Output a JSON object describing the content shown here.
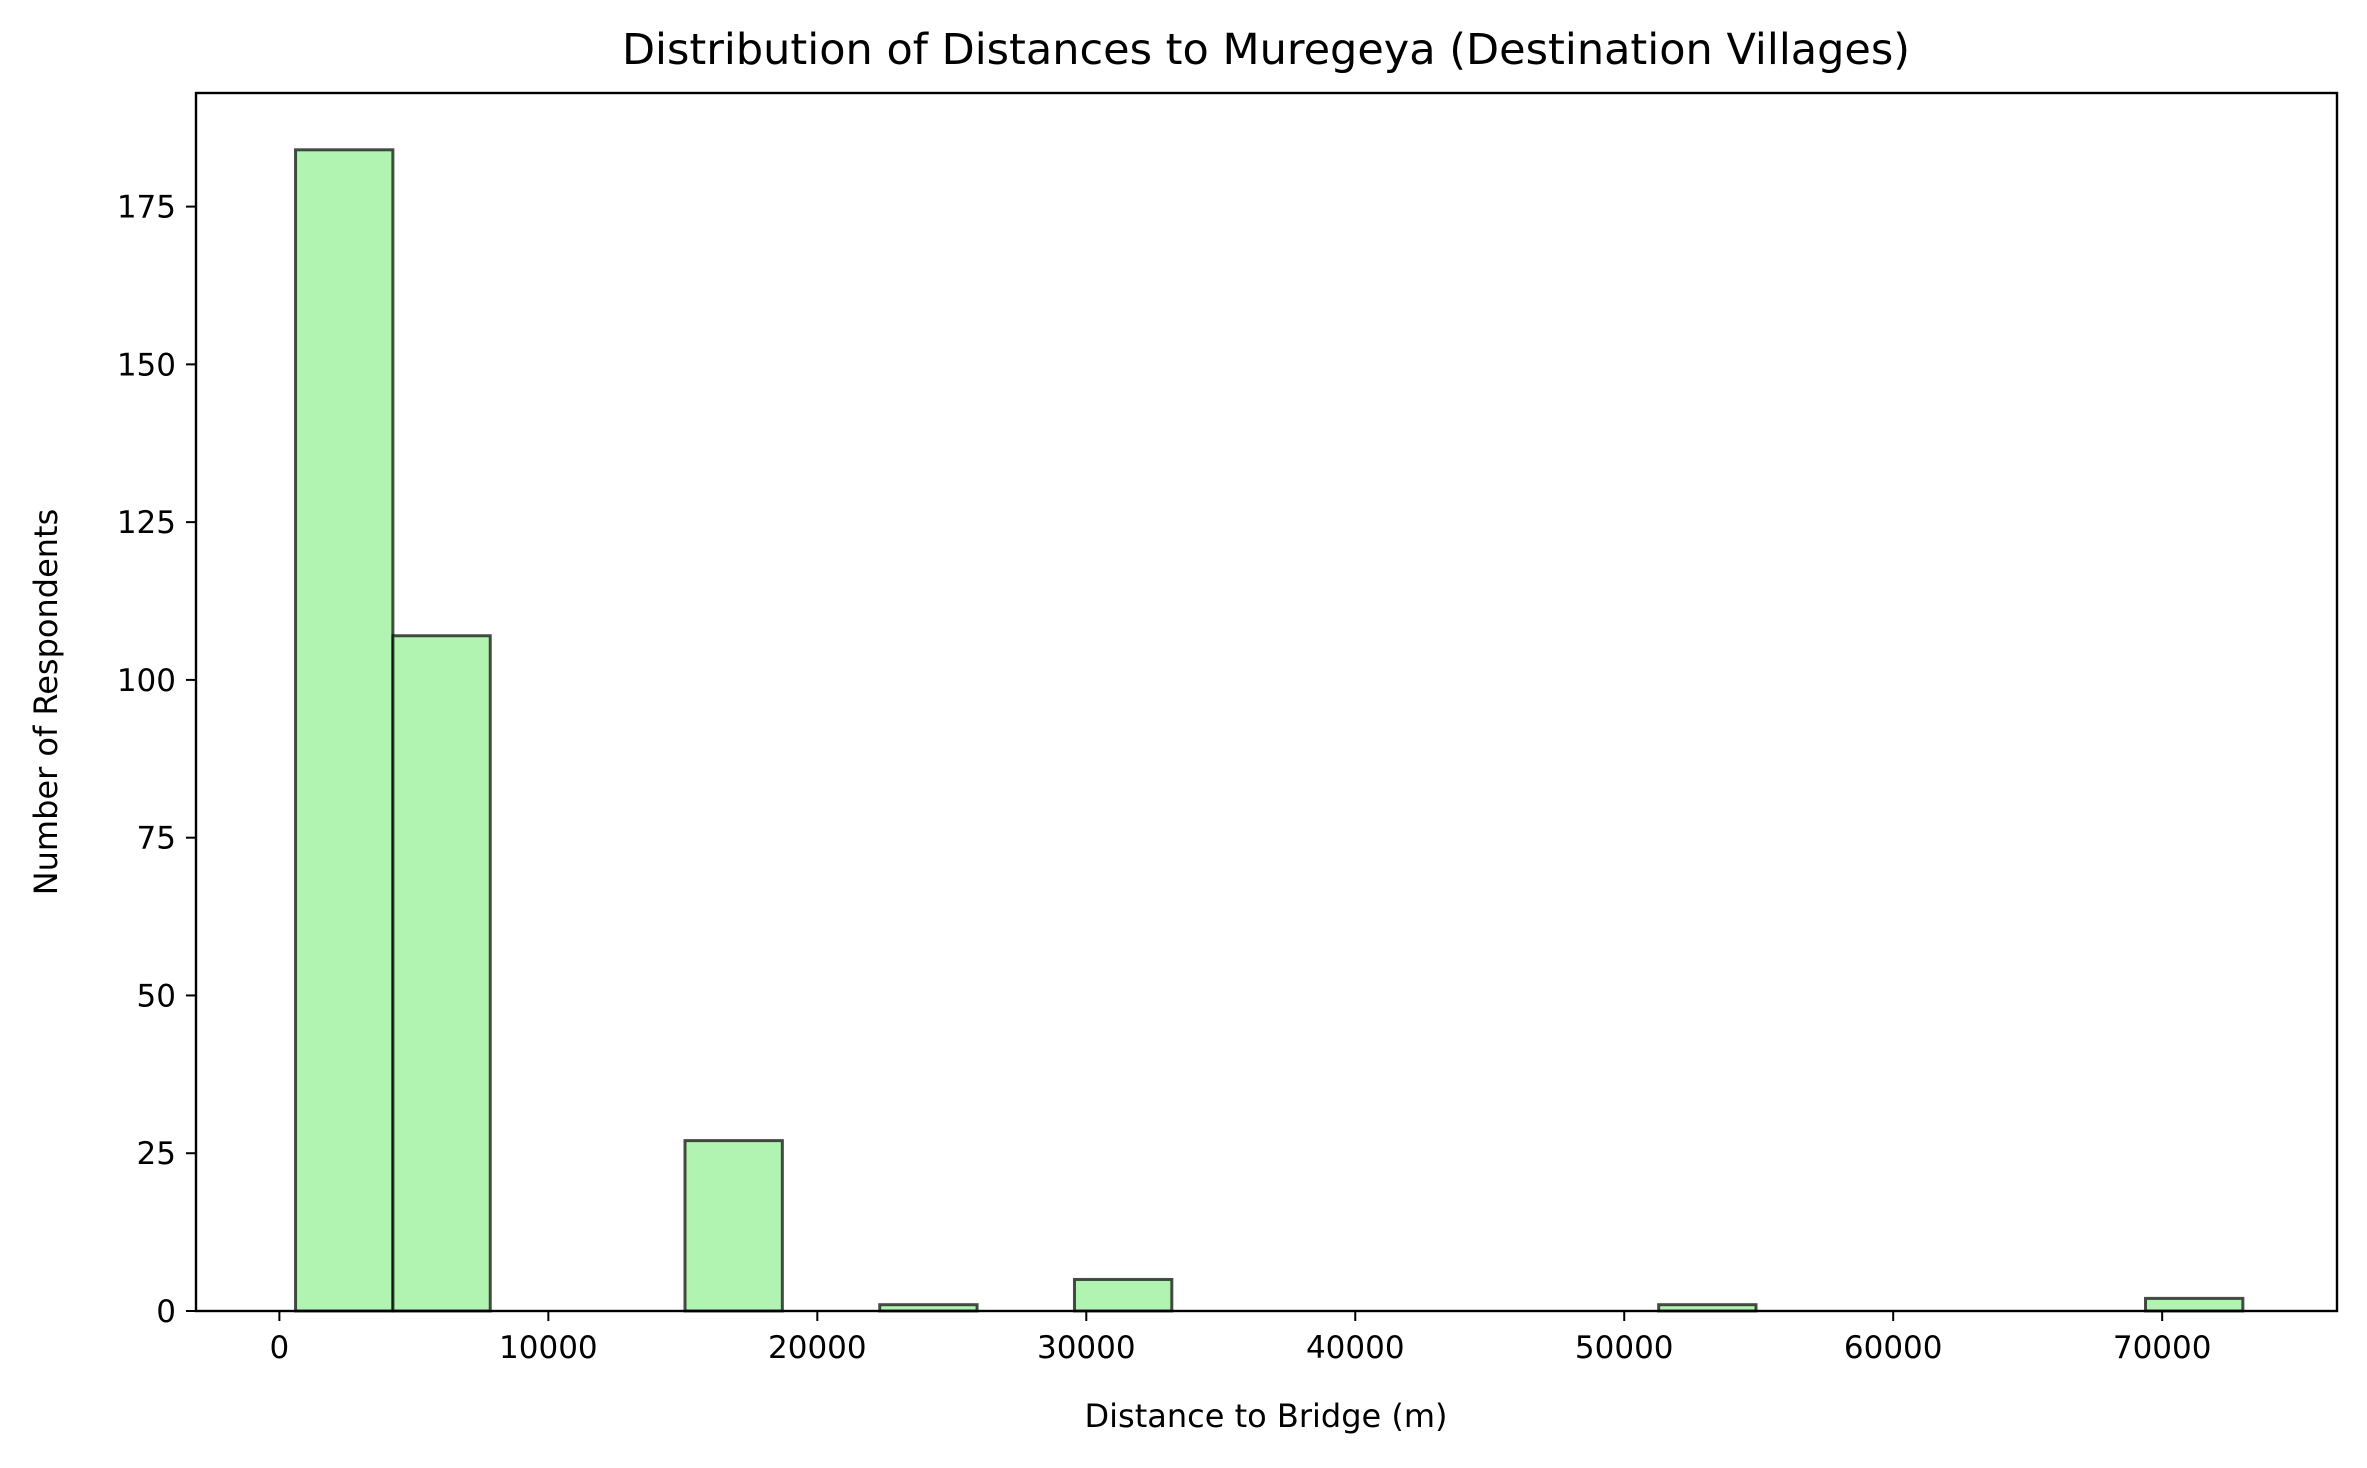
{
  "chart_data": {
    "type": "bar",
    "subtype": "histogram",
    "title": "Distribution of Distances to Muregeya (Destination Villages)",
    "xlabel": "Distance to Bridge (m)",
    "ylabel": "Number of Respondents",
    "xlim": [
      -3100,
      76500
    ],
    "ylim": [
      0,
      193
    ],
    "xticks": [
      0,
      10000,
      20000,
      30000,
      40000,
      50000,
      60000,
      70000
    ],
    "xtick_labels": [
      "0",
      "10000",
      "20000",
      "30000",
      "40000",
      "50000",
      "60000",
      "70000"
    ],
    "yticks": [
      0,
      25,
      50,
      75,
      100,
      125,
      150,
      175
    ],
    "ytick_labels": [
      "0",
      "25",
      "50",
      "75",
      "100",
      "125",
      "150",
      "175"
    ],
    "bins": [
      {
        "start": 600,
        "end": 4220,
        "count": 184
      },
      {
        "start": 4220,
        "end": 7840,
        "count": 107
      },
      {
        "start": 7840,
        "end": 11460,
        "count": 0
      },
      {
        "start": 11460,
        "end": 15080,
        "count": 0
      },
      {
        "start": 15080,
        "end": 18700,
        "count": 27
      },
      {
        "start": 18700,
        "end": 22320,
        "count": 0
      },
      {
        "start": 22320,
        "end": 25940,
        "count": 1
      },
      {
        "start": 25940,
        "end": 29560,
        "count": 0
      },
      {
        "start": 29560,
        "end": 33180,
        "count": 5
      },
      {
        "start": 33180,
        "end": 36800,
        "count": 0
      },
      {
        "start": 36800,
        "end": 40420,
        "count": 0
      },
      {
        "start": 40420,
        "end": 44040,
        "count": 0
      },
      {
        "start": 44040,
        "end": 47660,
        "count": 0
      },
      {
        "start": 47660,
        "end": 51280,
        "count": 0
      },
      {
        "start": 51280,
        "end": 54900,
        "count": 1
      },
      {
        "start": 54900,
        "end": 58520,
        "count": 0
      },
      {
        "start": 58520,
        "end": 62140,
        "count": 0
      },
      {
        "start": 62140,
        "end": 65760,
        "count": 0
      },
      {
        "start": 65760,
        "end": 69380,
        "count": 0
      },
      {
        "start": 69380,
        "end": 73000,
        "count": 2
      }
    ],
    "bar_fill": "#90ee90",
    "bar_fill_opacity": 0.7,
    "bar_edge": "#000000",
    "grid": false,
    "legend": "none"
  }
}
